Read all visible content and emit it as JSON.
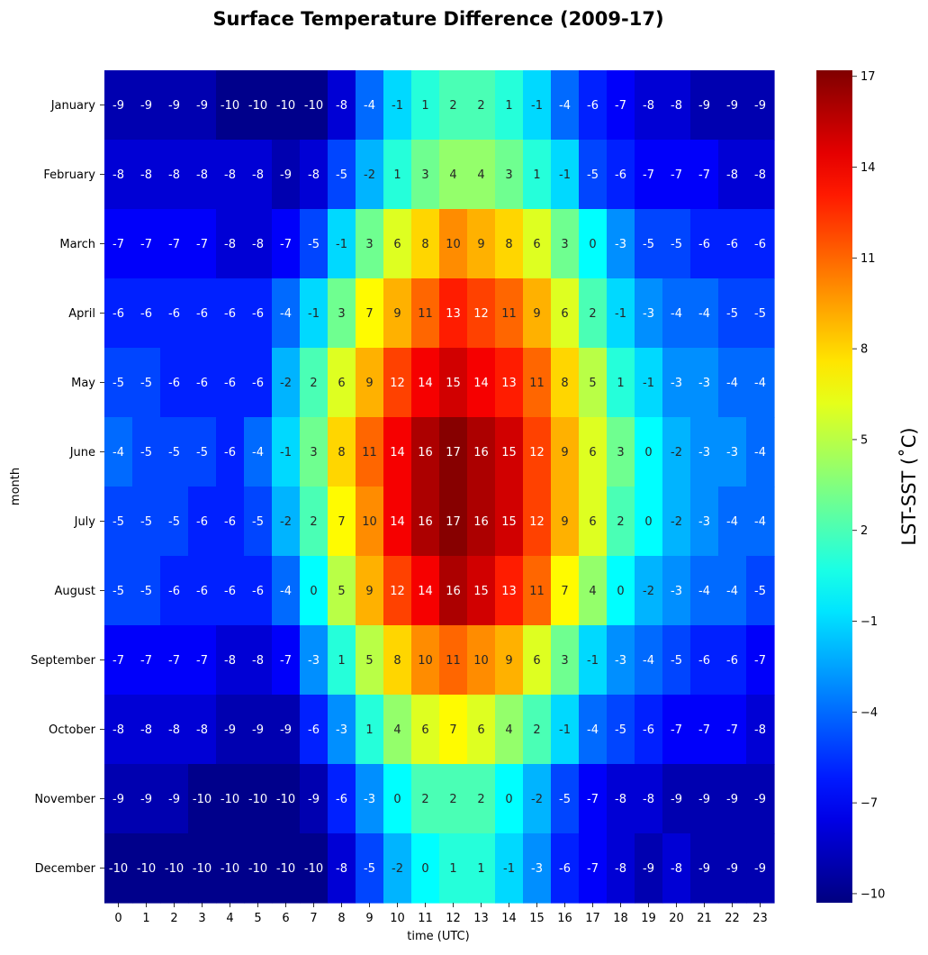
{
  "chart_data": {
    "type": "heatmap",
    "title": "Surface Temperature Difference (2009-17)",
    "xlabel": "time (UTC)",
    "ylabel": "month",
    "x": [
      "0",
      "1",
      "2",
      "3",
      "4",
      "5",
      "6",
      "7",
      "8",
      "9",
      "10",
      "11",
      "12",
      "13",
      "14",
      "15",
      "16",
      "17",
      "18",
      "19",
      "20",
      "21",
      "22",
      "23"
    ],
    "y": [
      "January",
      "February",
      "March",
      "April",
      "May",
      "June",
      "July",
      "August",
      "September",
      "October",
      "November",
      "December"
    ],
    "values": [
      [
        -9,
        -9,
        -9,
        -9,
        -10,
        -10,
        -10,
        -10,
        -8,
        -4,
        -1,
        1,
        2,
        2,
        1,
        -1,
        -4,
        -6,
        -7,
        -8,
        -8,
        -9,
        -9,
        -9
      ],
      [
        -8,
        -8,
        -8,
        -8,
        -8,
        -8,
        -9,
        -8,
        -5,
        -2,
        1,
        3,
        4,
        4,
        3,
        1,
        -1,
        -5,
        -6,
        -7,
        -7,
        -7,
        -8,
        -8
      ],
      [
        -7,
        -7,
        -7,
        -7,
        -8,
        -8,
        -7,
        -5,
        -1,
        3,
        6,
        8,
        10,
        9,
        8,
        6,
        3,
        0,
        -3,
        -5,
        -5,
        -6,
        -6,
        -6
      ],
      [
        -6,
        -6,
        -6,
        -6,
        -6,
        -6,
        -4,
        -1,
        3,
        7,
        9,
        11,
        13,
        12,
        11,
        9,
        6,
        2,
        -1,
        -3,
        -4,
        -4,
        -5,
        -5
      ],
      [
        -5,
        -5,
        -6,
        -6,
        -6,
        -6,
        -2,
        2,
        6,
        9,
        12,
        14,
        15,
        14,
        13,
        11,
        8,
        5,
        1,
        -1,
        -3,
        -3,
        -4,
        -4
      ],
      [
        -4,
        -5,
        -5,
        -5,
        -6,
        -4,
        -1,
        3,
        8,
        11,
        14,
        16,
        17,
        16,
        15,
        12,
        9,
        6,
        3,
        0,
        -2,
        -3,
        -3,
        -4
      ],
      [
        -5,
        -5,
        -5,
        -6,
        -6,
        -5,
        -2,
        2,
        7,
        10,
        14,
        16,
        17,
        16,
        15,
        12,
        9,
        6,
        2,
        0,
        -2,
        -3,
        -4,
        -4
      ],
      [
        -5,
        -5,
        -6,
        -6,
        -6,
        -6,
        -4,
        0,
        5,
        9,
        12,
        14,
        16,
        15,
        13,
        11,
        7,
        4,
        0,
        -2,
        -3,
        -4,
        -4,
        -5
      ],
      [
        -7,
        -7,
        -7,
        -7,
        -8,
        -8,
        -7,
        -3,
        1,
        5,
        8,
        10,
        11,
        10,
        9,
        6,
        3,
        -1,
        -3,
        -4,
        -5,
        -6,
        -6,
        -7
      ],
      [
        -8,
        -8,
        -8,
        -8,
        -9,
        -9,
        -9,
        -6,
        -3,
        1,
        4,
        6,
        7,
        6,
        4,
        2,
        -1,
        -4,
        -5,
        -6,
        -7,
        -7,
        -7,
        -8
      ],
      [
        -9,
        -9,
        -9,
        -10,
        -10,
        -10,
        -10,
        -9,
        -6,
        -3,
        0,
        2,
        2,
        2,
        0,
        -2,
        -5,
        -7,
        -8,
        -8,
        -9,
        -9,
        -9,
        -9
      ],
      [
        -10,
        -10,
        -10,
        -10,
        -10,
        -10,
        -10,
        -10,
        -8,
        -5,
        -2,
        0,
        1,
        1,
        -1,
        -3,
        -6,
        -7,
        -8,
        -9,
        -8,
        -9,
        -9,
        -9
      ]
    ],
    "colorscale": "jet",
    "vmin": -10.3,
    "vmax": 17.2,
    "colorbar": {
      "label": "LST-SST (˚C)",
      "ticks": [
        "−10",
        "−7",
        "−4",
        "−1",
        "2",
        "5",
        "8",
        "11",
        "14",
        "17"
      ]
    },
    "grid": false,
    "legend": "colorbar-right"
  }
}
